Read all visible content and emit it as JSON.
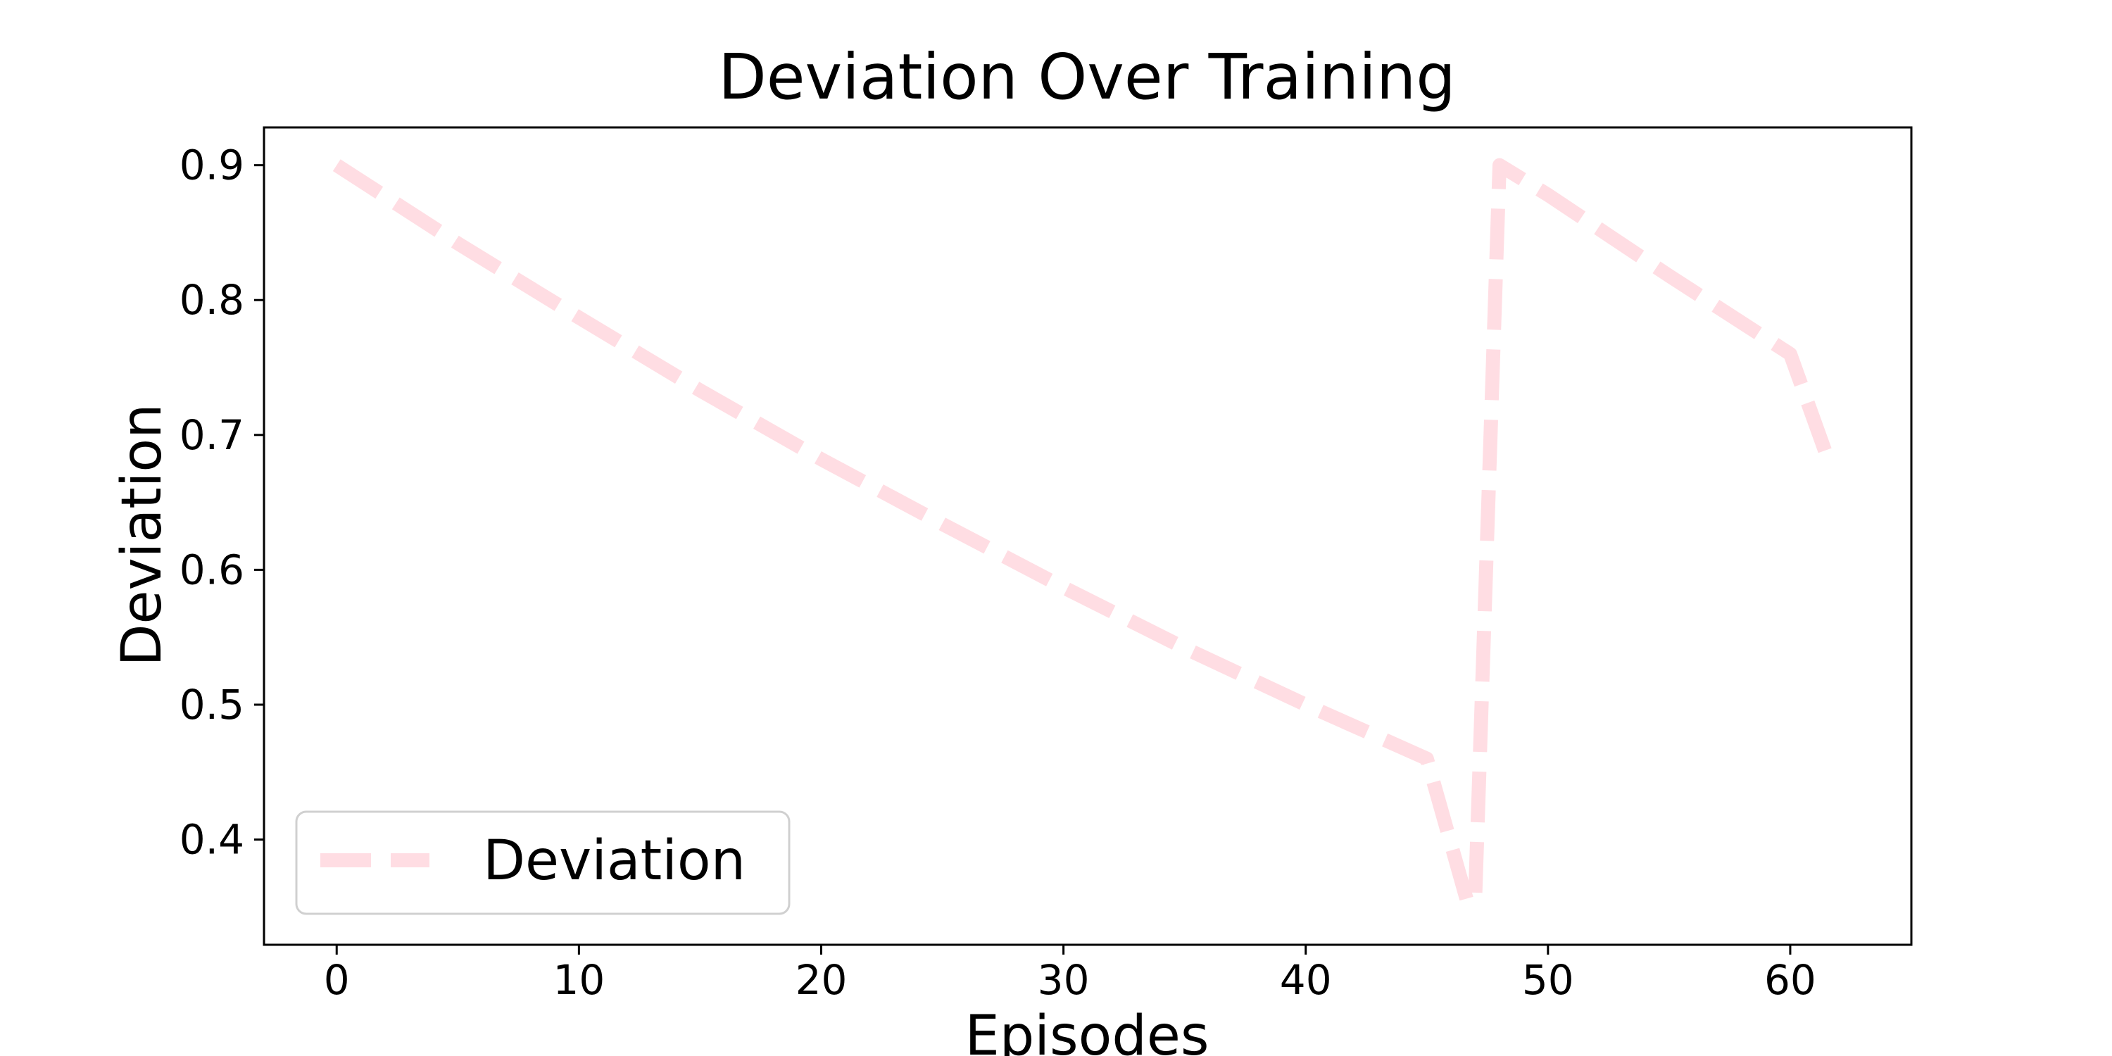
{
  "chart_data": {
    "type": "line",
    "title": "Deviation Over Training",
    "xlabel": "Episodes",
    "ylabel": "Deviation",
    "xlim": [
      -3,
      65
    ],
    "ylim": [
      0.322,
      0.928
    ],
    "x_ticks": [
      0,
      10,
      20,
      30,
      40,
      50,
      60
    ],
    "y_ticks": [
      0.4,
      0.5,
      0.6,
      0.7,
      0.8,
      0.9
    ],
    "x_tick_labels": [
      "0",
      "10",
      "20",
      "30",
      "40",
      "50",
      "60"
    ],
    "y_tick_labels": [
      "0.4",
      "0.5",
      "0.6",
      "0.7",
      "0.8",
      "0.9"
    ],
    "grid": false,
    "legend": {
      "placement": "lower-left"
    },
    "series": [
      {
        "name": "Deviation",
        "color": "#ffdde3",
        "line_style": "dashed",
        "points": [
          [
            0,
            0.9
          ],
          [
            5,
            0.842
          ],
          [
            10,
            0.787
          ],
          [
            15,
            0.733
          ],
          [
            20,
            0.682
          ],
          [
            25,
            0.634
          ],
          [
            30,
            0.587
          ],
          [
            35,
            0.542
          ],
          [
            40,
            0.5
          ],
          [
            45,
            0.46
          ],
          [
            46.7,
            0.352
          ],
          [
            47,
            0.36
          ],
          [
            48,
            0.9
          ],
          [
            50,
            0.878
          ],
          [
            55,
            0.818
          ],
          [
            60,
            0.76
          ],
          [
            61.5,
            0.685
          ]
        ]
      }
    ]
  }
}
